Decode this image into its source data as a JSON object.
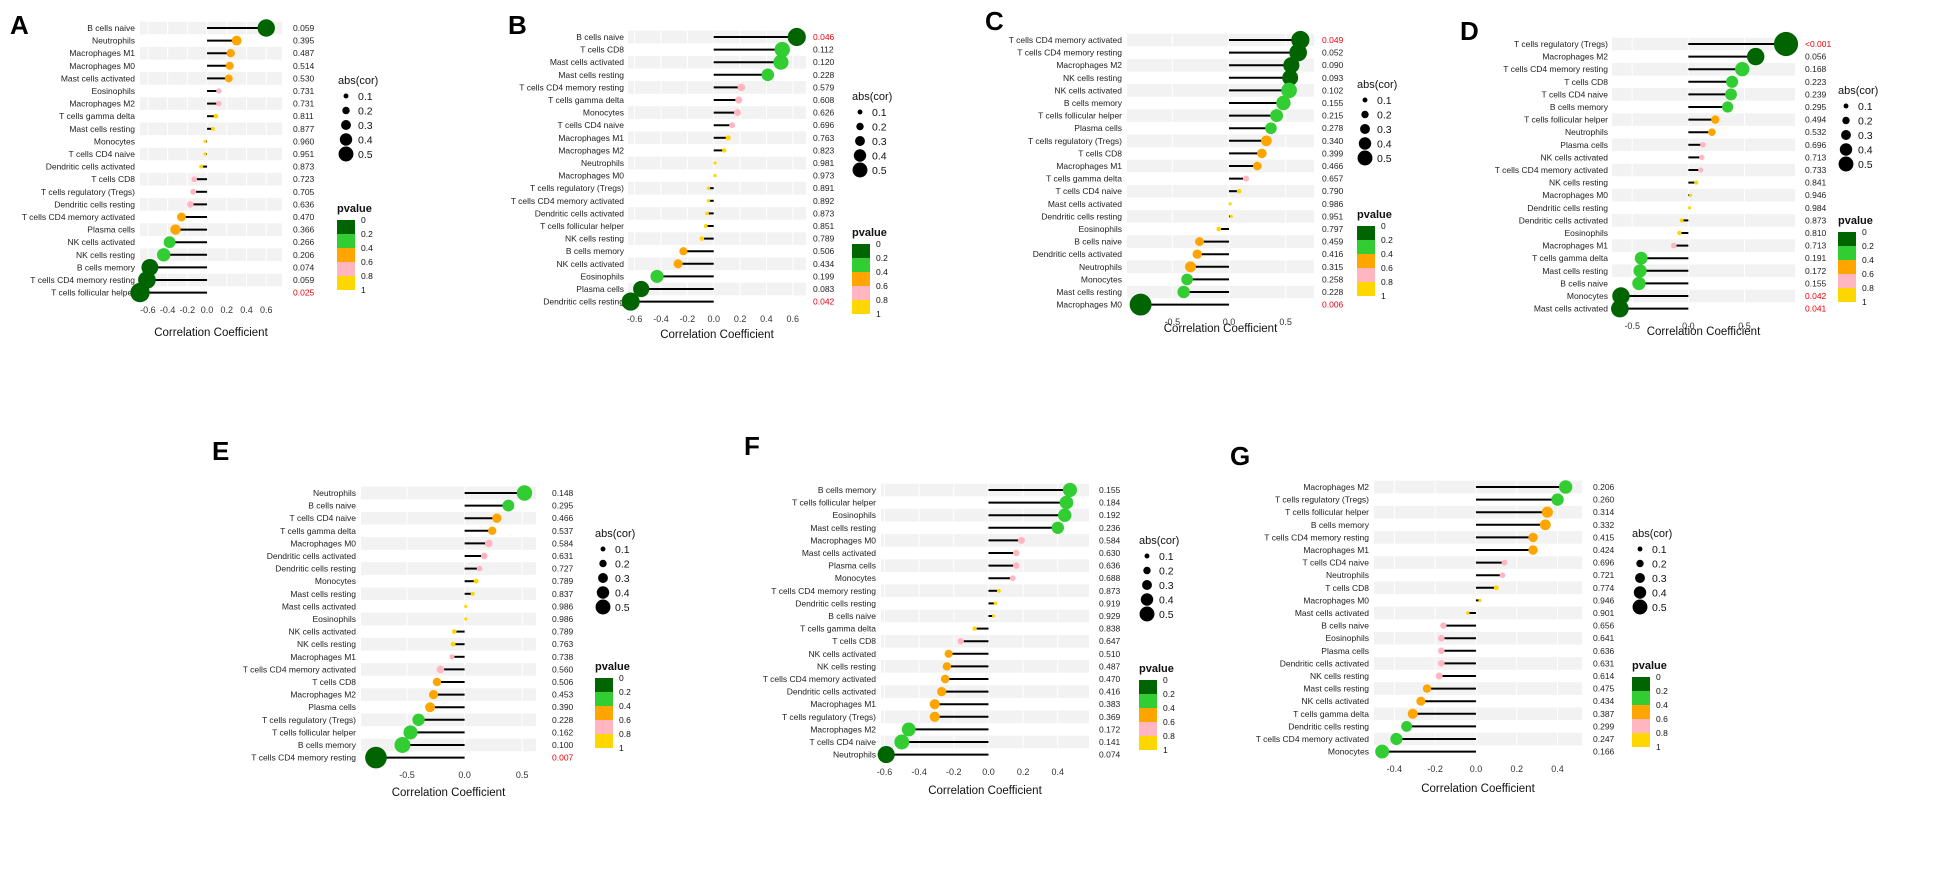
{
  "colors": {
    "p0": "#006400",
    "p02": "#32CD32",
    "p04": "#FFA500",
    "p06": "#FFB6C1",
    "p08": "#FFD700",
    "significant": "#e8000b",
    "grid_band": "#f2f2f2",
    "stem": "#000000"
  },
  "legend": {
    "abs_title": "abs(cor)",
    "abs_values": [
      0.1,
      0.2,
      0.3,
      0.4,
      0.5
    ],
    "abs_labels": [
      "0.1",
      "0.2",
      "0.3",
      "0.4",
      "0.5"
    ],
    "p_title": "pvalue",
    "p_labels": [
      "0",
      "0.2",
      "0.4",
      "0.6",
      "0.8",
      "1"
    ]
  },
  "chart_data": [
    {
      "type": "lollipop",
      "panel": "A",
      "xlabel": "Correlation Coefficient",
      "xlim": [
        -0.68,
        0.76
      ],
      "xticks": [
        -0.6,
        -0.4,
        -0.2,
        0.0,
        0.2,
        0.4,
        0.6
      ],
      "xtick_labels": [
        "-0.6",
        "-0.4",
        "-0.2",
        "0.0",
        "0.2",
        "0.4",
        "0.6"
      ],
      "points": [
        {
          "label": "B cells naive",
          "cor": 0.6,
          "p": "0.059"
        },
        {
          "label": "Neutrophils",
          "cor": 0.3,
          "p": "0.395"
        },
        {
          "label": "Macrophages M1",
          "cor": 0.24,
          "p": "0.487"
        },
        {
          "label": "Macrophages M0",
          "cor": 0.23,
          "p": "0.514"
        },
        {
          "label": "Mast cells activated",
          "cor": 0.22,
          "p": "0.530"
        },
        {
          "label": "Eosinophils",
          "cor": 0.12,
          "p": "0.731"
        },
        {
          "label": "Macrophages M2",
          "cor": 0.12,
          "p": "0.731"
        },
        {
          "label": "T cells gamma delta",
          "cor": 0.09,
          "p": "0.811"
        },
        {
          "label": "Mast cells resting",
          "cor": 0.06,
          "p": "0.877"
        },
        {
          "label": "Monocytes",
          "cor": -0.02,
          "p": "0.960"
        },
        {
          "label": "T cells CD4 naive",
          "cor": -0.02,
          "p": "0.951"
        },
        {
          "label": "Dendritic cells activated",
          "cor": -0.06,
          "p": "0.873"
        },
        {
          "label": "T cells CD8",
          "cor": -0.13,
          "p": "0.723"
        },
        {
          "label": "T cells regulatory (Tregs)",
          "cor": -0.14,
          "p": "0.705"
        },
        {
          "label": "Dendritic cells resting",
          "cor": -0.17,
          "p": "0.636"
        },
        {
          "label": "T cells CD4 memory activated",
          "cor": -0.26,
          "p": "0.470"
        },
        {
          "label": "Plasma cells",
          "cor": -0.32,
          "p": "0.366"
        },
        {
          "label": "NK cells activated",
          "cor": -0.38,
          "p": "0.266"
        },
        {
          "label": "NK cells resting",
          "cor": -0.44,
          "p": "0.206"
        },
        {
          "label": "B cells memory",
          "cor": -0.58,
          "p": "0.074"
        },
        {
          "label": "T cells CD4 memory resting",
          "cor": -0.61,
          "p": "0.059"
        },
        {
          "label": "T cells follicular helper",
          "cor": -0.68,
          "p": "0.025"
        }
      ]
    },
    {
      "type": "lollipop",
      "panel": "B",
      "xlabel": "Correlation Coefficient",
      "xlim": [
        -0.65,
        0.7
      ],
      "xticks": [
        -0.6,
        -0.4,
        -0.2,
        0.0,
        0.2,
        0.4,
        0.6
      ],
      "xtick_labels": [
        "-0.6",
        "-0.4",
        "-0.2",
        "0.0",
        "0.2",
        "0.4",
        "0.6"
      ],
      "points": [
        {
          "label": "B cells naive",
          "cor": 0.63,
          "p": "0.046"
        },
        {
          "label": "T cells CD8",
          "cor": 0.52,
          "p": "0.112"
        },
        {
          "label": "Mast cells activated",
          "cor": 0.51,
          "p": "0.120"
        },
        {
          "label": "Mast cells resting",
          "cor": 0.41,
          "p": "0.228"
        },
        {
          "label": "T cells CD4 memory resting",
          "cor": 0.21,
          "p": "0.579"
        },
        {
          "label": "T cells gamma delta",
          "cor": 0.19,
          "p": "0.608"
        },
        {
          "label": "Monocytes",
          "cor": 0.18,
          "p": "0.626"
        },
        {
          "label": "T cells CD4 naive",
          "cor": 0.14,
          "p": "0.696"
        },
        {
          "label": "Macrophages M1",
          "cor": 0.11,
          "p": "0.763"
        },
        {
          "label": "Macrophages M2",
          "cor": 0.08,
          "p": "0.823"
        },
        {
          "label": "Neutrophils",
          "cor": 0.01,
          "p": "0.981"
        },
        {
          "label": "Macrophages M0",
          "cor": 0.01,
          "p": "0.973"
        },
        {
          "label": "T cells regulatory (Tregs)",
          "cor": -0.04,
          "p": "0.891"
        },
        {
          "label": "T cells CD4 memory activated",
          "cor": -0.04,
          "p": "0.892"
        },
        {
          "label": "Dendritic cells activated",
          "cor": -0.05,
          "p": "0.873"
        },
        {
          "label": "T cells follicular helper",
          "cor": -0.06,
          "p": "0.851"
        },
        {
          "label": "NK cells resting",
          "cor": -0.09,
          "p": "0.789"
        },
        {
          "label": "B cells memory",
          "cor": -0.23,
          "p": "0.506"
        },
        {
          "label": "NK cells activated",
          "cor": -0.27,
          "p": "0.434"
        },
        {
          "label": "Eosinophils",
          "cor": -0.43,
          "p": "0.199"
        },
        {
          "label": "Plasma cells",
          "cor": -0.55,
          "p": "0.083"
        },
        {
          "label": "Dendritic cells resting",
          "cor": -0.63,
          "p": "0.042"
        }
      ]
    },
    {
      "type": "lollipop",
      "panel": "C",
      "xlabel": "Correlation Coefficient",
      "xlim": [
        -0.9,
        0.75
      ],
      "xticks": [
        -0.5,
        0.0,
        0.5
      ],
      "xtick_labels": [
        "-0.5",
        "0.0",
        "0.5"
      ],
      "points": [
        {
          "label": "T cells CD4 memory activated",
          "cor": 0.63,
          "p": "0.049"
        },
        {
          "label": "T cells CD4 memory resting",
          "cor": 0.61,
          "p": "0.052"
        },
        {
          "label": "Macrophages M2",
          "cor": 0.55,
          "p": "0.090"
        },
        {
          "label": "NK cells resting",
          "cor": 0.54,
          "p": "0.093"
        },
        {
          "label": "NK cells activated",
          "cor": 0.53,
          "p": "0.102"
        },
        {
          "label": "B cells memory",
          "cor": 0.48,
          "p": "0.155"
        },
        {
          "label": "T cells follicular helper",
          "cor": 0.42,
          "p": "0.215"
        },
        {
          "label": "Plasma cells",
          "cor": 0.37,
          "p": "0.278"
        },
        {
          "label": "T cells regulatory (Tregs)",
          "cor": 0.33,
          "p": "0.340"
        },
        {
          "label": "T cells CD8",
          "cor": 0.29,
          "p": "0.399"
        },
        {
          "label": "Macrophages M1",
          "cor": 0.25,
          "p": "0.466"
        },
        {
          "label": "T cells gamma delta",
          "cor": 0.15,
          "p": "0.657"
        },
        {
          "label": "T cells CD4 naive",
          "cor": 0.09,
          "p": "0.790"
        },
        {
          "label": "Mast cells activated",
          "cor": 0.01,
          "p": "0.986"
        },
        {
          "label": "Dendritic cells resting",
          "cor": 0.02,
          "p": "0.951"
        },
        {
          "label": "Eosinophils",
          "cor": -0.09,
          "p": "0.797"
        },
        {
          "label": "B cells naive",
          "cor": -0.26,
          "p": "0.459"
        },
        {
          "label": "Dendritic cells activated",
          "cor": -0.28,
          "p": "0.416"
        },
        {
          "label": "Neutrophils",
          "cor": -0.34,
          "p": "0.315"
        },
        {
          "label": "Monocytes",
          "cor": -0.37,
          "p": "0.258"
        },
        {
          "label": "Mast cells resting",
          "cor": -0.4,
          "p": "0.228"
        },
        {
          "label": "Macrophages M0",
          "cor": -0.78,
          "p": "0.006"
        }
      ]
    },
    {
      "type": "lollipop",
      "panel": "D",
      "xlabel": "Correlation Coefficient",
      "xlim": [
        -0.68,
        0.95
      ],
      "xticks": [
        -0.5,
        0.0,
        0.5
      ],
      "xtick_labels": [
        "-0.5",
        "0.0",
        "0.5"
      ],
      "points": [
        {
          "label": "T cells regulatory (Tregs)",
          "cor": 0.87,
          "p": "<0.001"
        },
        {
          "label": "Macrophages M2",
          "cor": 0.6,
          "p": "0.056"
        },
        {
          "label": "T cells CD4 memory resting",
          "cor": 0.48,
          "p": "0.168"
        },
        {
          "label": "T cells CD8",
          "cor": 0.39,
          "p": "0.223"
        },
        {
          "label": "T cells CD4 naive",
          "cor": 0.38,
          "p": "0.239"
        },
        {
          "label": "B cells memory",
          "cor": 0.35,
          "p": "0.295"
        },
        {
          "label": "T cells follicular helper",
          "cor": 0.24,
          "p": "0.494"
        },
        {
          "label": "Neutrophils",
          "cor": 0.21,
          "p": "0.532"
        },
        {
          "label": "Plasma cells",
          "cor": 0.13,
          "p": "0.696"
        },
        {
          "label": "NK cells activated",
          "cor": 0.12,
          "p": "0.713"
        },
        {
          "label": "T cells CD4 memory activated",
          "cor": 0.11,
          "p": "0.733"
        },
        {
          "label": "NK cells resting",
          "cor": 0.07,
          "p": "0.841"
        },
        {
          "label": "Macrophages M0",
          "cor": 0.02,
          "p": "0.946"
        },
        {
          "label": "Dendritic cells resting",
          "cor": 0.01,
          "p": "0.984"
        },
        {
          "label": "Dendritic cells activated",
          "cor": -0.06,
          "p": "0.873"
        },
        {
          "label": "Eosinophils",
          "cor": -0.08,
          "p": "0.810"
        },
        {
          "label": "Macrophages M1",
          "cor": -0.13,
          "p": "0.713"
        },
        {
          "label": "T cells gamma delta",
          "cor": -0.42,
          "p": "0.191"
        },
        {
          "label": "Mast cells resting",
          "cor": -0.43,
          "p": "0.172"
        },
        {
          "label": "B cells naive",
          "cor": -0.44,
          "p": "0.155"
        },
        {
          "label": "Monocytes",
          "cor": -0.6,
          "p": "0.042"
        },
        {
          "label": "Mast cells activated",
          "cor": -0.61,
          "p": "0.041"
        }
      ]
    },
    {
      "type": "lollipop",
      "panel": "E",
      "xlabel": "Correlation Coefficient",
      "xlim": [
        -0.9,
        0.62
      ],
      "xticks": [
        -0.5,
        0.0,
        0.5
      ],
      "xtick_labels": [
        "-0.5",
        "0.0",
        "0.5"
      ],
      "points": [
        {
          "label": "Neutrophils",
          "cor": 0.52,
          "p": "0.148"
        },
        {
          "label": "B cells naive",
          "cor": 0.38,
          "p": "0.295"
        },
        {
          "label": "T cells CD4 naive",
          "cor": 0.28,
          "p": "0.466"
        },
        {
          "label": "T cells gamma delta",
          "cor": 0.24,
          "p": "0.537"
        },
        {
          "label": "Macrophages M0",
          "cor": 0.21,
          "p": "0.584"
        },
        {
          "label": "Dendritic cells activated",
          "cor": 0.17,
          "p": "0.631"
        },
        {
          "label": "Dendritic cells resting",
          "cor": 0.13,
          "p": "0.727"
        },
        {
          "label": "Monocytes",
          "cor": 0.1,
          "p": "0.789"
        },
        {
          "label": "Mast cells resting",
          "cor": 0.07,
          "p": "0.837"
        },
        {
          "label": "Mast cells activated",
          "cor": 0.01,
          "p": "0.986"
        },
        {
          "label": "Eosinophils",
          "cor": 0.01,
          "p": "0.986"
        },
        {
          "label": "NK cells activated",
          "cor": -0.09,
          "p": "0.789"
        },
        {
          "label": "NK cells resting",
          "cor": -0.1,
          "p": "0.763"
        },
        {
          "label": "Macrophages M1",
          "cor": -0.11,
          "p": "0.738"
        },
        {
          "label": "T cells CD4 memory activated",
          "cor": -0.21,
          "p": "0.560"
        },
        {
          "label": "T cells CD8",
          "cor": -0.24,
          "p": "0.506"
        },
        {
          "label": "Macrophages M2",
          "cor": -0.27,
          "p": "0.453"
        },
        {
          "label": "Plasma cells",
          "cor": -0.3,
          "p": "0.390"
        },
        {
          "label": "T cells regulatory (Tregs)",
          "cor": -0.4,
          "p": "0.228"
        },
        {
          "label": "T cells follicular helper",
          "cor": -0.47,
          "p": "0.162"
        },
        {
          "label": "B cells memory",
          "cor": -0.54,
          "p": "0.100"
        },
        {
          "label": "T cells CD4 memory resting",
          "cor": -0.77,
          "p": "0.007"
        }
      ]
    },
    {
      "type": "lollipop",
      "panel": "F",
      "xlabel": "Correlation Coefficient",
      "xlim": [
        -0.62,
        0.58
      ],
      "xticks": [
        -0.6,
        -0.4,
        -0.2,
        0.0,
        0.2,
        0.4
      ],
      "xtick_labels": [
        "-0.6",
        "-0.4",
        "-0.2",
        "0.0",
        "0.2",
        "0.4"
      ],
      "points": [
        {
          "label": "B cells memory",
          "cor": 0.47,
          "p": "0.155"
        },
        {
          "label": "T cells follicular helper",
          "cor": 0.45,
          "p": "0.184"
        },
        {
          "label": "Eosinophils",
          "cor": 0.44,
          "p": "0.192"
        },
        {
          "label": "Mast cells resting",
          "cor": 0.4,
          "p": "0.236"
        },
        {
          "label": "Macrophages M0",
          "cor": 0.19,
          "p": "0.584"
        },
        {
          "label": "Mast cells activated",
          "cor": 0.16,
          "p": "0.630"
        },
        {
          "label": "Plasma cells",
          "cor": 0.16,
          "p": "0.636"
        },
        {
          "label": "Monocytes",
          "cor": 0.14,
          "p": "0.688"
        },
        {
          "label": "T cells CD4 memory resting",
          "cor": 0.06,
          "p": "0.873"
        },
        {
          "label": "Dendritic cells resting",
          "cor": 0.04,
          "p": "0.919"
        },
        {
          "label": "B cells naive",
          "cor": 0.03,
          "p": "0.929"
        },
        {
          "label": "T cells gamma delta",
          "cor": -0.08,
          "p": "0.838"
        },
        {
          "label": "T cells CD8",
          "cor": -0.16,
          "p": "0.647"
        },
        {
          "label": "NK cells activated",
          "cor": -0.23,
          "p": "0.510"
        },
        {
          "label": "NK cells resting",
          "cor": -0.24,
          "p": "0.487"
        },
        {
          "label": "T cells CD4 memory activated",
          "cor": -0.25,
          "p": "0.470"
        },
        {
          "label": "Dendritic cells activated",
          "cor": -0.27,
          "p": "0.416"
        },
        {
          "label": "Macrophages M1",
          "cor": -0.31,
          "p": "0.383"
        },
        {
          "label": "T cells regulatory (Tregs)",
          "cor": -0.31,
          "p": "0.369"
        },
        {
          "label": "Macrophages M2",
          "cor": -0.46,
          "p": "0.172"
        },
        {
          "label": "T cells CD4 naive",
          "cor": -0.5,
          "p": "0.141"
        },
        {
          "label": "Neutrophils",
          "cor": -0.59,
          "p": "0.074"
        }
      ]
    },
    {
      "type": "lollipop",
      "panel": "G",
      "xlabel": "Correlation Coefficient",
      "xlim": [
        -0.5,
        0.52
      ],
      "xticks": [
        -0.4,
        -0.2,
        0.0,
        0.2,
        0.4
      ],
      "xtick_labels": [
        "-0.4",
        "-0.2",
        "0.0",
        "0.2",
        "0.4"
      ],
      "points": [
        {
          "label": "Macrophages M2",
          "cor": 0.44,
          "p": "0.206"
        },
        {
          "label": "T cells regulatory (Tregs)",
          "cor": 0.4,
          "p": "0.260"
        },
        {
          "label": "T cells follicular helper",
          "cor": 0.35,
          "p": "0.314"
        },
        {
          "label": "B cells memory",
          "cor": 0.34,
          "p": "0.332"
        },
        {
          "label": "T cells CD4 memory resting",
          "cor": 0.28,
          "p": "0.415"
        },
        {
          "label": "Macrophages M1",
          "cor": 0.28,
          "p": "0.424"
        },
        {
          "label": "T cells CD4 naive",
          "cor": 0.14,
          "p": "0.696"
        },
        {
          "label": "Neutrophils",
          "cor": 0.13,
          "p": "0.721"
        },
        {
          "label": "T cells CD8",
          "cor": 0.1,
          "p": "0.774"
        },
        {
          "label": "Macrophages M0",
          "cor": 0.02,
          "p": "0.946"
        },
        {
          "label": "Mast cells activated",
          "cor": -0.04,
          "p": "0.901"
        },
        {
          "label": "B cells naive",
          "cor": -0.16,
          "p": "0.656"
        },
        {
          "label": "Eosinophils",
          "cor": -0.17,
          "p": "0.641"
        },
        {
          "label": "Plasma cells",
          "cor": -0.17,
          "p": "0.636"
        },
        {
          "label": "Dendritic cells activated",
          "cor": -0.17,
          "p": "0.631"
        },
        {
          "label": "NK cells resting",
          "cor": -0.18,
          "p": "0.614"
        },
        {
          "label": "Mast cells resting",
          "cor": -0.24,
          "p": "0.475"
        },
        {
          "label": "NK cells activated",
          "cor": -0.27,
          "p": "0.434"
        },
        {
          "label": "T cells gamma delta",
          "cor": -0.31,
          "p": "0.387"
        },
        {
          "label": "Dendritic cells resting",
          "cor": -0.34,
          "p": "0.299"
        },
        {
          "label": "T cells CD4 memory activated",
          "cor": -0.39,
          "p": "0.247"
        },
        {
          "label": "Monocytes",
          "cor": -0.46,
          "p": "0.166"
        }
      ]
    }
  ]
}
